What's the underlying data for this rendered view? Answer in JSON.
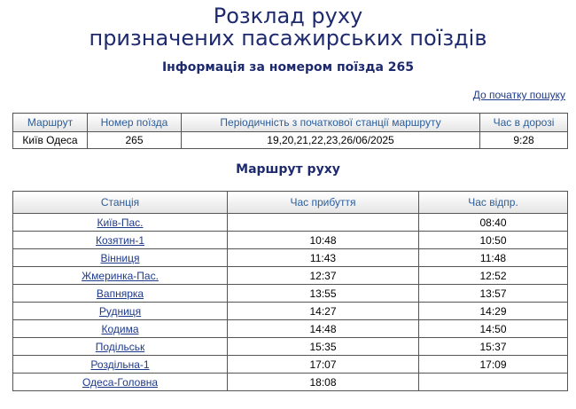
{
  "header": {
    "title_line1": "Розклад руху",
    "title_line2": "призначених пасажирських поїздів",
    "subtitle": "Інформація за номером поїзда 265"
  },
  "back_link": "До початку пошуку",
  "info_table": {
    "headers": [
      "Маршрут",
      "Номер поїзда",
      "Періодичність з початкової станції маршруту",
      "Час в дорозі"
    ],
    "row": [
      "Київ Одеса",
      "265",
      "19,20,21,22,23,26/06/2025",
      "9:28"
    ]
  },
  "route_title": "Маршрут руху",
  "route_table": {
    "headers": [
      "Станція",
      "Час прибуття",
      "Час відпр."
    ],
    "rows": [
      {
        "station": "Київ-Пас.",
        "arrival": "",
        "departure": "08:40"
      },
      {
        "station": "Козятин-1",
        "arrival": "10:48",
        "departure": "10:50"
      },
      {
        "station": "Вінниця",
        "arrival": "11:43",
        "departure": "11:48"
      },
      {
        "station": "Жмеринка-Пас.",
        "arrival": "12:37",
        "departure": "12:52"
      },
      {
        "station": "Вапнярка",
        "arrival": "13:55",
        "departure": "13:57"
      },
      {
        "station": "Рудниця",
        "arrival": "14:27",
        "departure": "14:29"
      },
      {
        "station": "Кодима",
        "arrival": "14:48",
        "departure": "14:50"
      },
      {
        "station": "Подільськ",
        "arrival": "15:35",
        "departure": "15:37"
      },
      {
        "station": "Роздільна-1",
        "arrival": "17:07",
        "departure": "17:09"
      },
      {
        "station": "Одеса-Головна",
        "arrival": "18:08",
        "departure": ""
      }
    ]
  }
}
